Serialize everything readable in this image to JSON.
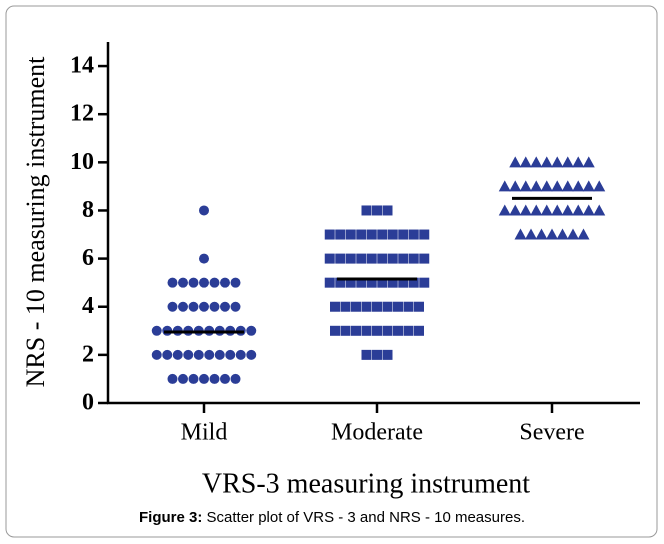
{
  "chart_data": {
    "type": "dot",
    "y_label": "NRS - 10 measuring instrument",
    "x_label": "VRS-3 measuring instrument",
    "categories": [
      "Mild",
      "Moderate",
      "Severe"
    ],
    "markers": [
      "circle",
      "square",
      "triangle"
    ],
    "color": "#2b3d97",
    "values": [
      [
        8,
        6,
        5,
        5,
        5,
        5,
        5,
        5,
        5,
        4,
        4,
        4,
        4,
        4,
        4,
        4,
        3,
        3,
        3,
        3,
        3,
        3,
        3,
        3,
        3,
        3,
        2,
        2,
        2,
        2,
        2,
        2,
        2,
        2,
        2,
        2,
        1,
        1,
        1,
        1,
        1,
        1,
        1
      ],
      [
        8,
        8,
        8,
        7,
        7,
        7,
        7,
        7,
        7,
        7,
        7,
        7,
        7,
        6,
        6,
        6,
        6,
        6,
        6,
        6,
        6,
        6,
        6,
        5,
        5,
        5,
        5,
        5,
        5,
        5,
        5,
        5,
        5,
        4,
        4,
        4,
        4,
        4,
        4,
        4,
        4,
        4,
        3,
        3,
        3,
        3,
        3,
        3,
        3,
        3,
        3,
        2,
        2,
        2
      ],
      [
        10,
        10,
        10,
        10,
        10,
        10,
        10,
        10,
        9,
        9,
        9,
        9,
        9,
        9,
        9,
        9,
        9,
        9,
        8,
        8,
        8,
        8,
        8,
        8,
        8,
        8,
        8,
        8,
        7,
        7,
        7,
        7,
        7,
        7,
        7
      ]
    ],
    "means": [
      2.95,
      5.15,
      8.5
    ],
    "ylim": [
      0,
      15
    ],
    "yticks": [
      0,
      2,
      4,
      6,
      8,
      10,
      12,
      14
    ]
  },
  "caption": {
    "label": "Figure 3:",
    "text": "Scatter plot of VRS - 3 and NRS - 10 measures."
  }
}
